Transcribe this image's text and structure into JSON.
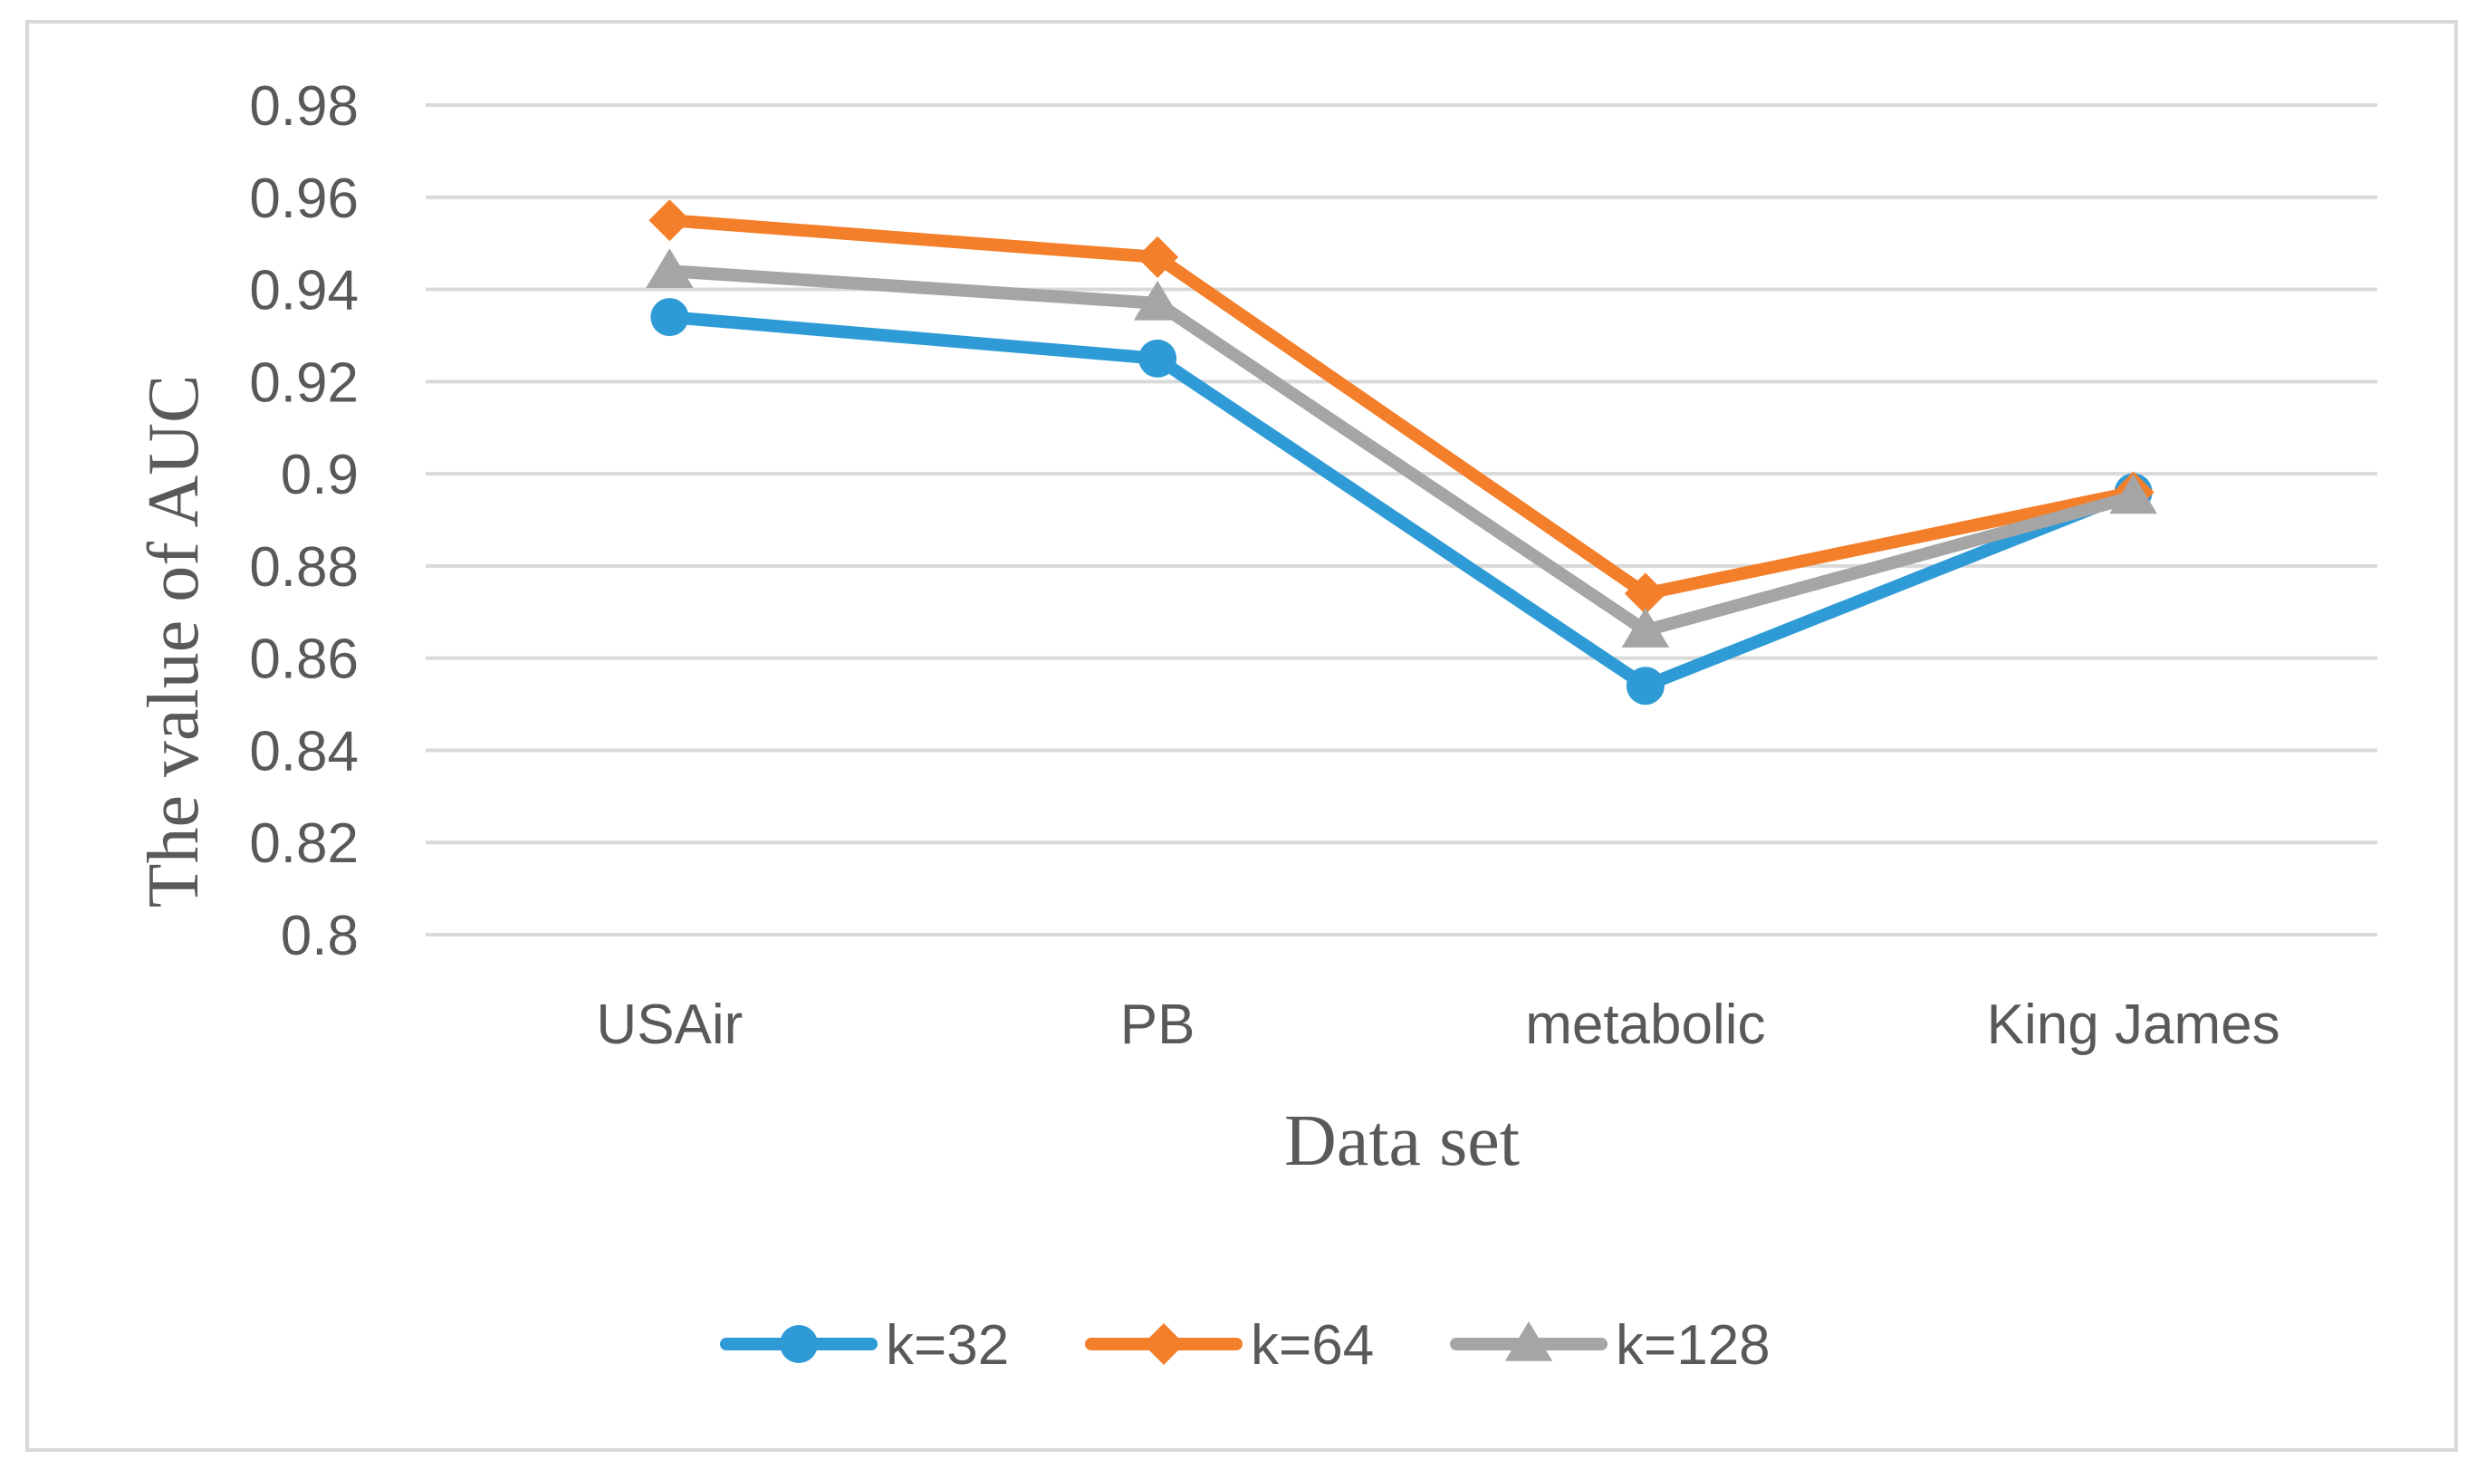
{
  "chart_data": {
    "type": "line",
    "title": "",
    "xlabel": "Data set",
    "ylabel": "The value of AUC",
    "categories": [
      "USAir",
      "PB",
      "metabolic",
      "King James"
    ],
    "ylim": [
      0.8,
      0.98
    ],
    "yticks": [
      0.8,
      0.82,
      0.84,
      0.86,
      0.88,
      0.9,
      0.92,
      0.94,
      0.96,
      0.98
    ],
    "ytick_labels": [
      "0.8",
      "0.82",
      "0.84",
      "0.86",
      "0.88",
      "0.9",
      "0.92",
      "0.94",
      "0.96",
      "0.98"
    ],
    "grid": true,
    "legend_position": "bottom",
    "series": [
      {
        "name": "k=32",
        "color": "#2e9bd6",
        "marker": "circle",
        "values": [
          0.934,
          0.925,
          0.854,
          0.896
        ]
      },
      {
        "name": "k=64",
        "color": "#f47f2a",
        "marker": "diamond",
        "values": [
          0.955,
          0.947,
          0.874,
          0.896
        ]
      },
      {
        "name": "k=128",
        "color": "#a5a5a5",
        "marker": "triangle",
        "values": [
          0.944,
          0.937,
          0.866,
          0.895
        ]
      }
    ]
  }
}
